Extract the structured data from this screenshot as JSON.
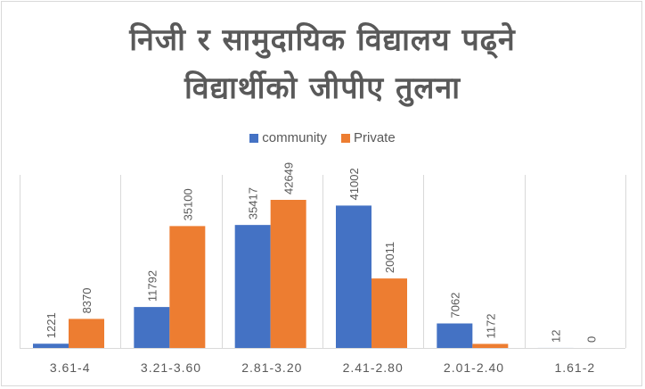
{
  "title_lines": [
    "निजी र सामुदायिक विद्यालय पढ्ने",
    "विद्यार्थीको   जीपीए तुलना"
  ],
  "colors": {
    "community": "#4472c4",
    "private": "#ed7d31",
    "grid": "#d9d9d9",
    "text": "#595959"
  },
  "chart_data": {
    "type": "bar",
    "categories": [
      "3.61-4",
      "3.21-3.60",
      "2.81-3.20",
      "2.41-2.80",
      "2.01-2.40",
      "1.61-2"
    ],
    "series": [
      {
        "name": "community",
        "values": [
          1221,
          11792,
          35417,
          41002,
          7062,
          12
        ]
      },
      {
        "name": "Private",
        "values": [
          8370,
          35100,
          42649,
          20011,
          1172,
          0
        ]
      }
    ],
    "ylim": [
      0,
      50000
    ],
    "legend": "top",
    "grid": "vertical-category-separators",
    "data_labels": "rotated"
  }
}
